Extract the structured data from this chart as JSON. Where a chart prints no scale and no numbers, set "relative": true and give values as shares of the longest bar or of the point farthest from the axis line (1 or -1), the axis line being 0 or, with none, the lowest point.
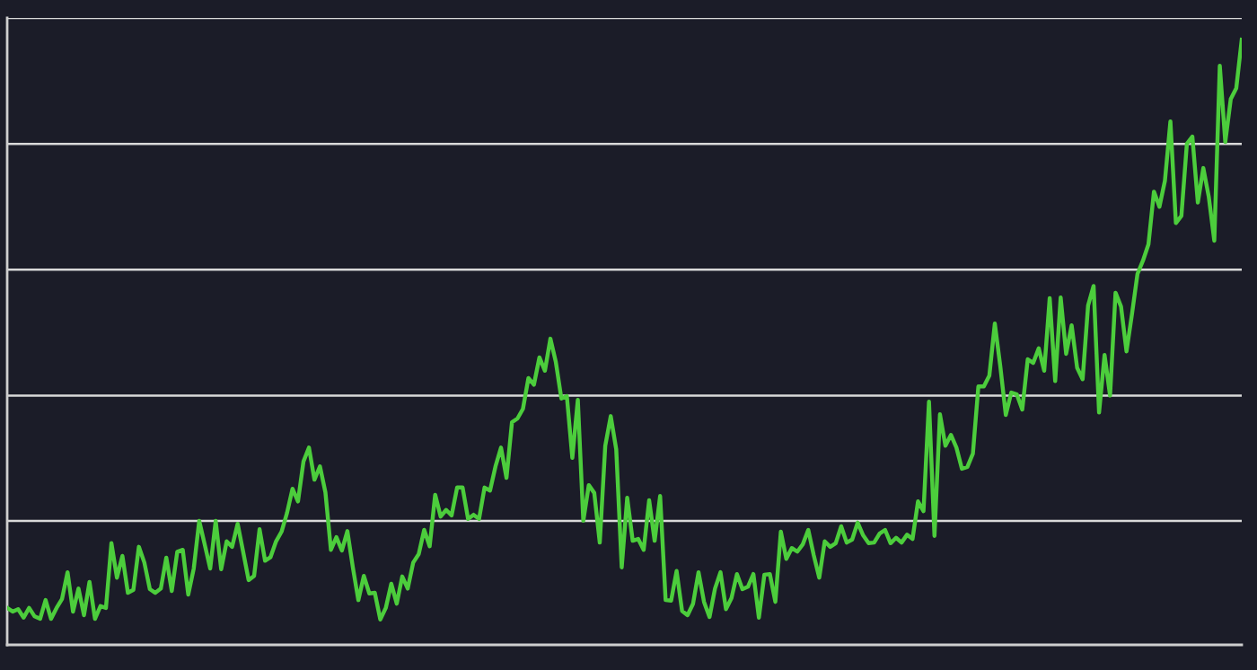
{
  "chart_data": {
    "type": "line",
    "relative": true,
    "marker": "none",
    "line_style": "solid",
    "categories": [
      null,
      null,
      null,
      null,
      null,
      null,
      null,
      null,
      null,
      null,
      null,
      null,
      null,
      null,
      null,
      null,
      null,
      null,
      null,
      null,
      null,
      null,
      null,
      null,
      null,
      null,
      null,
      null,
      null,
      null,
      null,
      null,
      null,
      null,
      null,
      null,
      null,
      null,
      null,
      null,
      null,
      null,
      null,
      null,
      null,
      null,
      null,
      null,
      null,
      null,
      null,
      null,
      null,
      null,
      null,
      null,
      null,
      null,
      null,
      null,
      null,
      null,
      null,
      null,
      null,
      null,
      null,
      null,
      null,
      null,
      null,
      null,
      null,
      null,
      null,
      null,
      null,
      null,
      null,
      null,
      null,
      null,
      null,
      null,
      null,
      null,
      null,
      null,
      null,
      null,
      null,
      null,
      null,
      null,
      null,
      null,
      null,
      null,
      null,
      null,
      null,
      null,
      null,
      null,
      null,
      null,
      null,
      null,
      null,
      null,
      null,
      null,
      null,
      null,
      null,
      null,
      null,
      null,
      null,
      null,
      null,
      null,
      null,
      null,
      null,
      null,
      null,
      null,
      null,
      null,
      null,
      null,
      null,
      null,
      null,
      null,
      null,
      null,
      null,
      null,
      null,
      null,
      null,
      null,
      null,
      null,
      null,
      null,
      null,
      null,
      null,
      null,
      null,
      null,
      null,
      null,
      null,
      null,
      null,
      null,
      null,
      null,
      null,
      null,
      null,
      null,
      null,
      null,
      null,
      null,
      null,
      null,
      null,
      null,
      null,
      null,
      null,
      null,
      null,
      null,
      null,
      null,
      null,
      null,
      null,
      null,
      null,
      null,
      null,
      null,
      null,
      null,
      null,
      null,
      null,
      null,
      null,
      null,
      null,
      null,
      null,
      null,
      null,
      null,
      null,
      null,
      null,
      null,
      null,
      null,
      null,
      null,
      null,
      null,
      null,
      null,
      null,
      null,
      null,
      null,
      null,
      null,
      null,
      null,
      null,
      null
    ],
    "ref_lines": [
      {
        "axis": "y",
        "value": 0.205,
        "color": "#d9d9d9"
      },
      {
        "axis": "y",
        "value": 0.412,
        "color": "#d9d9d9"
      },
      {
        "axis": "y",
        "value": 0.62,
        "color": "#d9d9d9"
      },
      {
        "axis": "y",
        "value": 0.828,
        "color": "#d9d9d9"
      },
      {
        "axis": "y",
        "value": 1.036,
        "color": "#d9d9d9"
      }
    ],
    "series": [
      {
        "color": "#4ccd3c",
        "values": [
          0.061,
          0.055,
          0.059,
          0.045,
          0.061,
          0.047,
          0.043,
          0.074,
          0.043,
          0.061,
          0.076,
          0.12,
          0.055,
          0.093,
          0.049,
          0.104,
          0.043,
          0.064,
          0.061,
          0.168,
          0.111,
          0.147,
          0.086,
          0.091,
          0.162,
          0.136,
          0.092,
          0.086,
          0.093,
          0.144,
          0.089,
          0.154,
          0.157,
          0.083,
          0.126,
          0.205,
          0.166,
          0.126,
          0.205,
          0.125,
          0.171,
          0.162,
          0.2,
          0.154,
          0.107,
          0.114,
          0.191,
          0.139,
          0.145,
          0.171,
          0.187,
          0.218,
          0.258,
          0.237,
          0.303,
          0.326,
          0.273,
          0.295,
          0.252,
          0.157,
          0.178,
          0.156,
          0.188,
          0.128,
          0.074,
          0.114,
          0.085,
          0.086,
          0.042,
          0.061,
          0.101,
          0.068,
          0.113,
          0.093,
          0.136,
          0.15,
          0.19,
          0.163,
          0.248,
          0.212,
          0.223,
          0.214,
          0.26,
          0.26,
          0.208,
          0.215,
          0.208,
          0.26,
          0.255,
          0.295,
          0.326,
          0.276,
          0.368,
          0.374,
          0.39,
          0.441,
          0.43,
          0.475,
          0.453,
          0.506,
          0.467,
          0.407,
          0.411,
          0.309,
          0.405,
          0.205,
          0.264,
          0.251,
          0.169,
          0.329,
          0.378,
          0.323,
          0.128,
          0.243,
          0.172,
          0.175,
          0.157,
          0.239,
          0.172,
          0.246,
          0.074,
          0.073,
          0.122,
          0.056,
          0.049,
          0.068,
          0.12,
          0.071,
          0.046,
          0.093,
          0.12,
          0.059,
          0.077,
          0.117,
          0.092,
          0.096,
          0.117,
          0.045,
          0.116,
          0.117,
          0.071,
          0.187,
          0.142,
          0.16,
          0.154,
          0.166,
          0.19,
          0.148,
          0.111,
          0.171,
          0.162,
          0.168,
          0.196,
          0.169,
          0.174,
          0.202,
          0.181,
          0.168,
          0.169,
          0.184,
          0.19,
          0.168,
          0.177,
          0.169,
          0.182,
          0.175,
          0.237,
          0.221,
          0.402,
          0.18,
          0.381,
          0.329,
          0.347,
          0.326,
          0.291,
          0.294,
          0.316,
          0.427,
          0.427,
          0.445,
          0.531,
          0.46,
          0.38,
          0.417,
          0.414,
          0.389,
          0.472,
          0.466,
          0.49,
          0.453,
          0.573,
          0.436,
          0.574,
          0.481,
          0.528,
          0.458,
          0.439,
          0.561,
          0.593,
          0.384,
          0.479,
          0.412,
          0.582,
          0.559,
          0.485,
          0.547,
          0.613,
          0.635,
          0.662,
          0.749,
          0.724,
          0.767,
          0.865,
          0.697,
          0.709,
          0.828,
          0.84,
          0.731,
          0.788,
          0.74,
          0.668,
          0.957,
          0.831,
          0.902,
          0.92,
          1.0
        ]
      }
    ]
  }
}
